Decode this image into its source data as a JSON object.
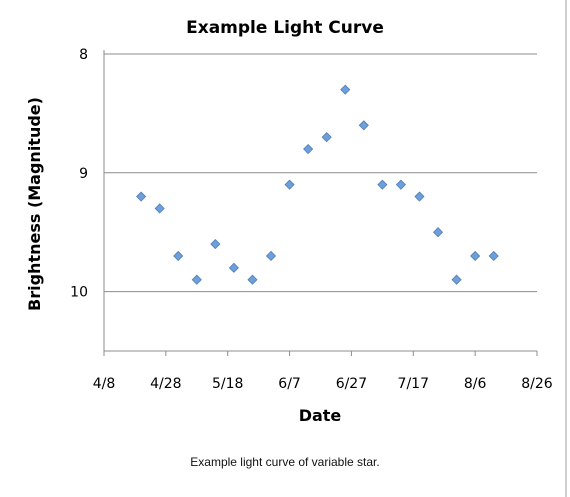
{
  "caption": "Example light curve of variable star.",
  "chart_data": {
    "type": "scatter",
    "title": "Example Light Curve",
    "xlabel": "Date",
    "ylabel": "Brightness (Magnitude)",
    "x_tick_labels": [
      "4/8",
      "4/28",
      "5/18",
      "6/7",
      "6/27",
      "7/17",
      "8/6",
      "8/26"
    ],
    "x_range_days": [
      0,
      140
    ],
    "y_ticks": [
      8,
      9,
      10
    ],
    "y_range": [
      8,
      10.5
    ],
    "y_inverted": true,
    "grid": "horizontal",
    "marker": "diamond",
    "marker_color": "#6f9fd8",
    "points": [
      {
        "x": 12,
        "y": 9.2
      },
      {
        "x": 18,
        "y": 9.3
      },
      {
        "x": 24,
        "y": 9.7
      },
      {
        "x": 30,
        "y": 9.9
      },
      {
        "x": 36,
        "y": 9.6
      },
      {
        "x": 42,
        "y": 9.8
      },
      {
        "x": 48,
        "y": 9.9
      },
      {
        "x": 54,
        "y": 9.7
      },
      {
        "x": 60,
        "y": 9.1
      },
      {
        "x": 66,
        "y": 8.8
      },
      {
        "x": 72,
        "y": 8.7
      },
      {
        "x": 78,
        "y": 8.3
      },
      {
        "x": 84,
        "y": 8.6
      },
      {
        "x": 90,
        "y": 9.1
      },
      {
        "x": 96,
        "y": 9.1
      },
      {
        "x": 102,
        "y": 9.2
      },
      {
        "x": 108,
        "y": 9.5
      },
      {
        "x": 114,
        "y": 9.9
      },
      {
        "x": 120,
        "y": 9.7
      },
      {
        "x": 126,
        "y": 9.7
      }
    ]
  }
}
